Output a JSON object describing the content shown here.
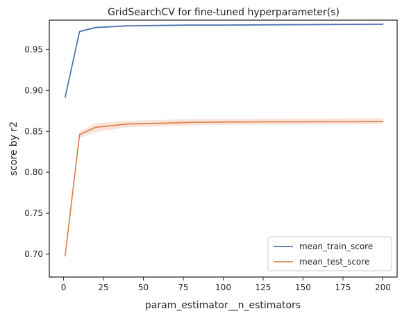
{
  "chart_data": {
    "type": "line",
    "title": "GridSearchCV for fine-tuned hyperparameter(s)",
    "xlabel": "param_estimator__n_estimators",
    "ylabel": "score by r2",
    "xlim": [
      -8.95,
      208.95
    ],
    "ylim": [
      0.672,
      0.986
    ],
    "x_ticks": [
      0,
      25,
      50,
      75,
      100,
      125,
      150,
      175,
      200
    ],
    "y_ticks": [
      0.7,
      0.75,
      0.8,
      0.85,
      0.9,
      0.95
    ],
    "grid": false,
    "legend_position": "lower-right",
    "series": [
      {
        "name": "mean_train_score",
        "color": "#4c72b0",
        "x": [
          1,
          10,
          20,
          40,
          80,
          100,
          200
        ],
        "y": [
          0.892,
          0.972,
          0.977,
          0.979,
          0.98,
          0.98,
          0.981
        ],
        "band_lower": [
          0.891,
          0.971,
          0.976,
          0.978,
          0.979,
          0.979,
          0.98
        ],
        "band_upper": [
          0.893,
          0.973,
          0.978,
          0.98,
          0.981,
          0.981,
          0.982
        ]
      },
      {
        "name": "mean_test_score",
        "color": "#dd8452",
        "x": [
          1,
          10,
          20,
          40,
          80,
          100,
          200
        ],
        "y": [
          0.698,
          0.846,
          0.855,
          0.859,
          0.861,
          0.8615,
          0.862
        ],
        "band_lower": [
          0.697,
          0.842,
          0.849,
          0.855,
          0.857,
          0.858,
          0.859
        ],
        "band_upper": [
          0.699,
          0.85,
          0.86,
          0.863,
          0.865,
          0.865,
          0.866
        ]
      }
    ]
  }
}
